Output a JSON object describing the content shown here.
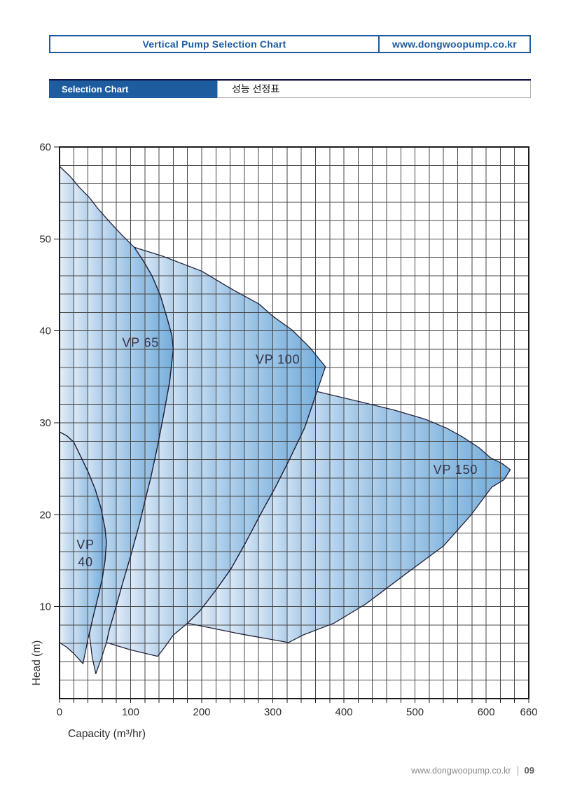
{
  "header": {
    "title": "Vertical Pump Selection Chart",
    "site": "www.dongwoopump.co.kr"
  },
  "section": {
    "label_en": "Selection Chart",
    "label_ko": "성능 선정표"
  },
  "footer": {
    "site": "www.dongwoopump.co.kr",
    "page": "09"
  },
  "colors": {
    "accent_blue": "#1d5c9f",
    "section_topline": "#131347",
    "grid": "#474747",
    "frame": "#1a1a1a",
    "region_outline": "#23233a",
    "fill_light": "rgba(205,223,242,0.50)",
    "fill_dark": "rgba(88,158,214,0.78)",
    "band": "rgba(80,145,205,0.22)",
    "tick_text": "#2e2e2e",
    "label_text": "#343448"
  },
  "chart_data": {
    "type": "area",
    "title": "",
    "xlabel": "Capacity (m³/hr)",
    "ylabel": "Head (m)",
    "xlim": [
      0,
      660
    ],
    "ylim": [
      0,
      60
    ],
    "x_ticks": [
      0,
      100,
      200,
      300,
      400,
      500,
      600,
      660
    ],
    "y_ticks": [
      10,
      20,
      30,
      40,
      50,
      60
    ],
    "x_minor_step": 20,
    "y_minor_step": 2,
    "grid": true,
    "regions": [
      {
        "name": "VP 40",
        "label_lines": [
          "VP",
          "40"
        ],
        "label_at": [
          36.5,
          15.8
        ],
        "points": [
          [
            0,
            29
          ],
          [
            10,
            28.6
          ],
          [
            20,
            27.9
          ],
          [
            30,
            26.3
          ],
          [
            40,
            24.7
          ],
          [
            50,
            22.8
          ],
          [
            58,
            20.8
          ],
          [
            64,
            18.5
          ],
          [
            66,
            17
          ],
          [
            64,
            15
          ],
          [
            60,
            13
          ],
          [
            54,
            11
          ],
          [
            47,
            8.8
          ],
          [
            40,
            6.5
          ],
          [
            33,
            3.8
          ],
          [
            20,
            4.9
          ],
          [
            10,
            5.6
          ],
          [
            0,
            6.1
          ]
        ]
      },
      {
        "name": "VP 65",
        "label_lines": [
          "VP 65"
        ],
        "label_at": [
          114,
          38.7
        ],
        "points": [
          [
            0,
            57.9
          ],
          [
            15,
            56.8
          ],
          [
            28,
            55.6
          ],
          [
            42,
            54.5
          ],
          [
            54,
            53.3
          ],
          [
            70,
            51.9
          ],
          [
            88,
            50.4
          ],
          [
            105,
            49.1
          ],
          [
            118,
            47.6
          ],
          [
            130,
            46
          ],
          [
            142,
            43.8
          ],
          [
            152,
            41.2
          ],
          [
            158,
            39.5
          ],
          [
            160,
            38
          ],
          [
            155,
            34.5
          ],
          [
            148,
            31.5
          ],
          [
            138,
            27.5
          ],
          [
            128,
            23.9
          ],
          [
            123,
            22.4
          ],
          [
            112,
            18.9
          ],
          [
            100,
            15.5
          ],
          [
            89,
            12.6
          ],
          [
            78,
            9.6
          ],
          [
            70,
            7.5
          ],
          [
            66,
            6.1
          ],
          [
            58,
            4.2
          ],
          [
            51,
            2.7
          ],
          [
            46,
            4.5
          ],
          [
            42,
            7
          ],
          [
            47,
            8.8
          ],
          [
            54,
            11
          ],
          [
            60,
            13
          ],
          [
            64,
            15
          ],
          [
            66,
            17
          ],
          [
            64,
            18.5
          ],
          [
            58,
            20.8
          ],
          [
            50,
            22.8
          ],
          [
            40,
            24.7
          ],
          [
            30,
            26.3
          ],
          [
            20,
            27.9
          ],
          [
            10,
            28.6
          ],
          [
            0,
            29
          ]
        ]
      },
      {
        "name": "VP 100",
        "label_lines": [
          "VP 100"
        ],
        "label_at": [
          307,
          36.9
        ],
        "points": [
          [
            105,
            49.1
          ],
          [
            146,
            48.1
          ],
          [
            200,
            46.5
          ],
          [
            241,
            44.6
          ],
          [
            281,
            42.9
          ],
          [
            300,
            41.6
          ],
          [
            327,
            40.1
          ],
          [
            352,
            38.2
          ],
          [
            374,
            36.1
          ],
          [
            362,
            33.4
          ],
          [
            345,
            29.5
          ],
          [
            322,
            25.8
          ],
          [
            303,
            22.9
          ],
          [
            283,
            20.1
          ],
          [
            262,
            17
          ],
          [
            241,
            14.1
          ],
          [
            220,
            11.8
          ],
          [
            198,
            9.6
          ],
          [
            180,
            8.2
          ],
          [
            160,
            6.9
          ],
          [
            148,
            5.6
          ],
          [
            138,
            4.6
          ],
          [
            100,
            5.3
          ],
          [
            66,
            6.1
          ],
          [
            70,
            7.5
          ],
          [
            78,
            9.6
          ],
          [
            89,
            12.6
          ],
          [
            100,
            15.5
          ],
          [
            112,
            18.9
          ],
          [
            123,
            22.4
          ],
          [
            128,
            23.9
          ],
          [
            138,
            27.5
          ],
          [
            148,
            31.5
          ],
          [
            155,
            34.5
          ],
          [
            160,
            38
          ],
          [
            158,
            39.5
          ],
          [
            152,
            41.2
          ],
          [
            142,
            43.8
          ],
          [
            130,
            46
          ],
          [
            118,
            47.6
          ]
        ]
      },
      {
        "name": "VP 150",
        "label_lines": [
          "VP 150"
        ],
        "label_at": [
          557,
          24.9
        ],
        "points": [
          [
            362,
            33.4
          ],
          [
            422,
            32.3
          ],
          [
            470,
            31.4
          ],
          [
            514,
            30.4
          ],
          [
            545,
            29.4
          ],
          [
            566,
            28.5
          ],
          [
            590,
            27.3
          ],
          [
            606,
            26.2
          ],
          [
            622,
            25.6
          ],
          [
            634,
            24.9
          ],
          [
            625,
            23.8
          ],
          [
            608,
            23
          ],
          [
            578,
            19.9
          ],
          [
            540,
            16.6
          ],
          [
            491,
            13.8
          ],
          [
            431,
            10.3
          ],
          [
            386,
            8.2
          ],
          [
            342,
            6.9
          ],
          [
            322,
            6.1
          ],
          [
            250,
            7.1
          ],
          [
            180,
            8.2
          ],
          [
            198,
            9.6
          ],
          [
            220,
            11.8
          ],
          [
            241,
            14.1
          ],
          [
            262,
            17
          ],
          [
            283,
            20.1
          ],
          [
            303,
            22.9
          ],
          [
            322,
            25.8
          ],
          [
            345,
            29.5
          ]
        ]
      }
    ]
  }
}
